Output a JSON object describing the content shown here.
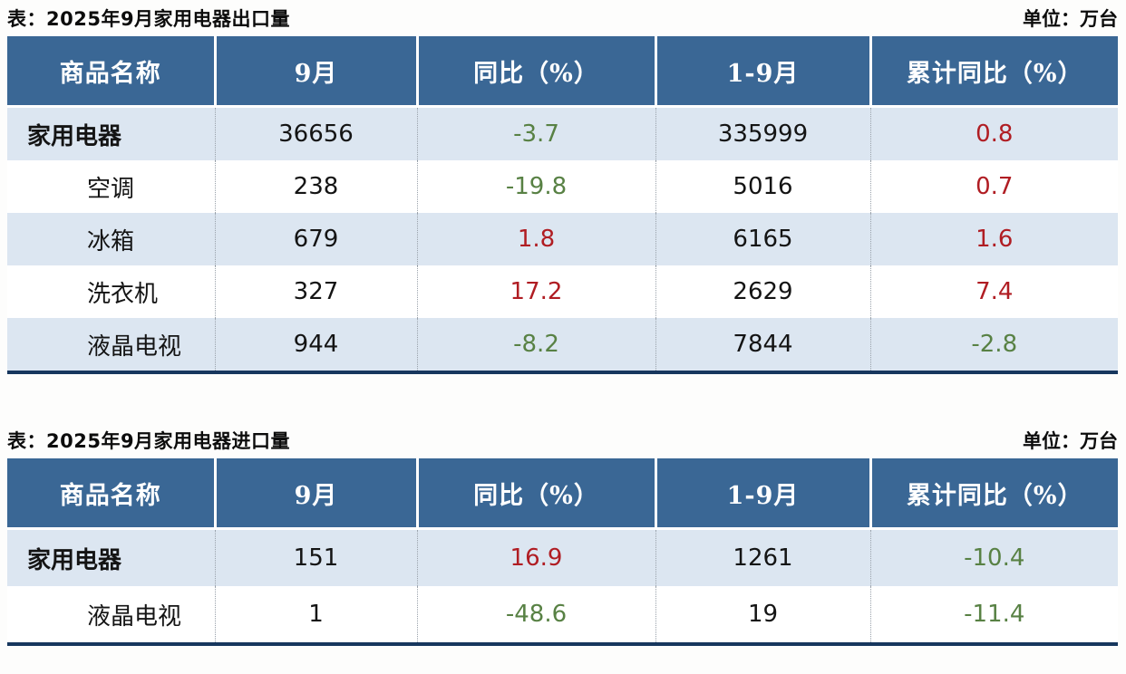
{
  "colors": {
    "positive_red": "#b01d23",
    "negative_green": "#588144",
    "header_bg": "#3a6795",
    "row_alt_blue": "#dce6f1",
    "border_navy": "#17375e"
  },
  "tables": [
    {
      "title": "表：2025年9月家用电器出口量",
      "unit": "单位：万台",
      "headers": [
        "商品名称",
        "9月",
        "同比（%）",
        "1-9月",
        "累计同比（%）"
      ],
      "rows": [
        {
          "name": "家用电器",
          "sep": "36656",
          "yoy": "-3.7",
          "jan_sep": "335999",
          "cum_yoy": "0.8"
        },
        {
          "name": "空调",
          "sep": "238",
          "yoy": "-19.8",
          "jan_sep": "5016",
          "cum_yoy": "0.7"
        },
        {
          "name": "冰箱",
          "sep": "679",
          "yoy": "1.8",
          "jan_sep": "6165",
          "cum_yoy": "1.6"
        },
        {
          "name": "洗衣机",
          "sep": "327",
          "yoy": "17.2",
          "jan_sep": "2629",
          "cum_yoy": "7.4"
        },
        {
          "name": "液晶电视",
          "sep": "944",
          "yoy": "-8.2",
          "jan_sep": "7844",
          "cum_yoy": "-2.8"
        }
      ]
    },
    {
      "title": "表：2025年9月家用电器进口量",
      "unit": "单位：万台",
      "headers": [
        "商品名称",
        "9月",
        "同比（%）",
        "1-9月",
        "累计同比（%）"
      ],
      "rows": [
        {
          "name": "家用电器",
          "sep": "151",
          "yoy": "16.9",
          "jan_sep": "1261",
          "cum_yoy": "-10.4"
        },
        {
          "name": "液晶电视",
          "sep": "1",
          "yoy": "-48.6",
          "jan_sep": "19",
          "cum_yoy": "-11.4"
        }
      ]
    }
  ],
  "chart_data": [
    {
      "type": "table",
      "title": "表：2025年9月家用电器出口量",
      "unit": "单位：万台",
      "columns": [
        "商品名称",
        "9月",
        "同比（%）",
        "1-9月",
        "累计同比（%）"
      ],
      "rows": [
        [
          "家用电器",
          36656,
          -3.7,
          335999,
          0.8
        ],
        [
          "空调",
          238,
          -19.8,
          5016,
          0.7
        ],
        [
          "冰箱",
          679,
          1.8,
          6165,
          1.6
        ],
        [
          "洗衣机",
          327,
          17.2,
          2629,
          7.4
        ],
        [
          "液晶电视",
          944,
          -8.2,
          7844,
          -2.8
        ]
      ]
    },
    {
      "type": "table",
      "title": "表：2025年9月家用电器进口量",
      "unit": "单位：万台",
      "columns": [
        "商品名称",
        "9月",
        "同比（%）",
        "1-9月",
        "累计同比（%）"
      ],
      "rows": [
        [
          "家用电器",
          151,
          16.9,
          1261,
          -10.4
        ],
        [
          "液晶电视",
          1,
          -48.6,
          19,
          -11.4
        ]
      ]
    }
  ]
}
